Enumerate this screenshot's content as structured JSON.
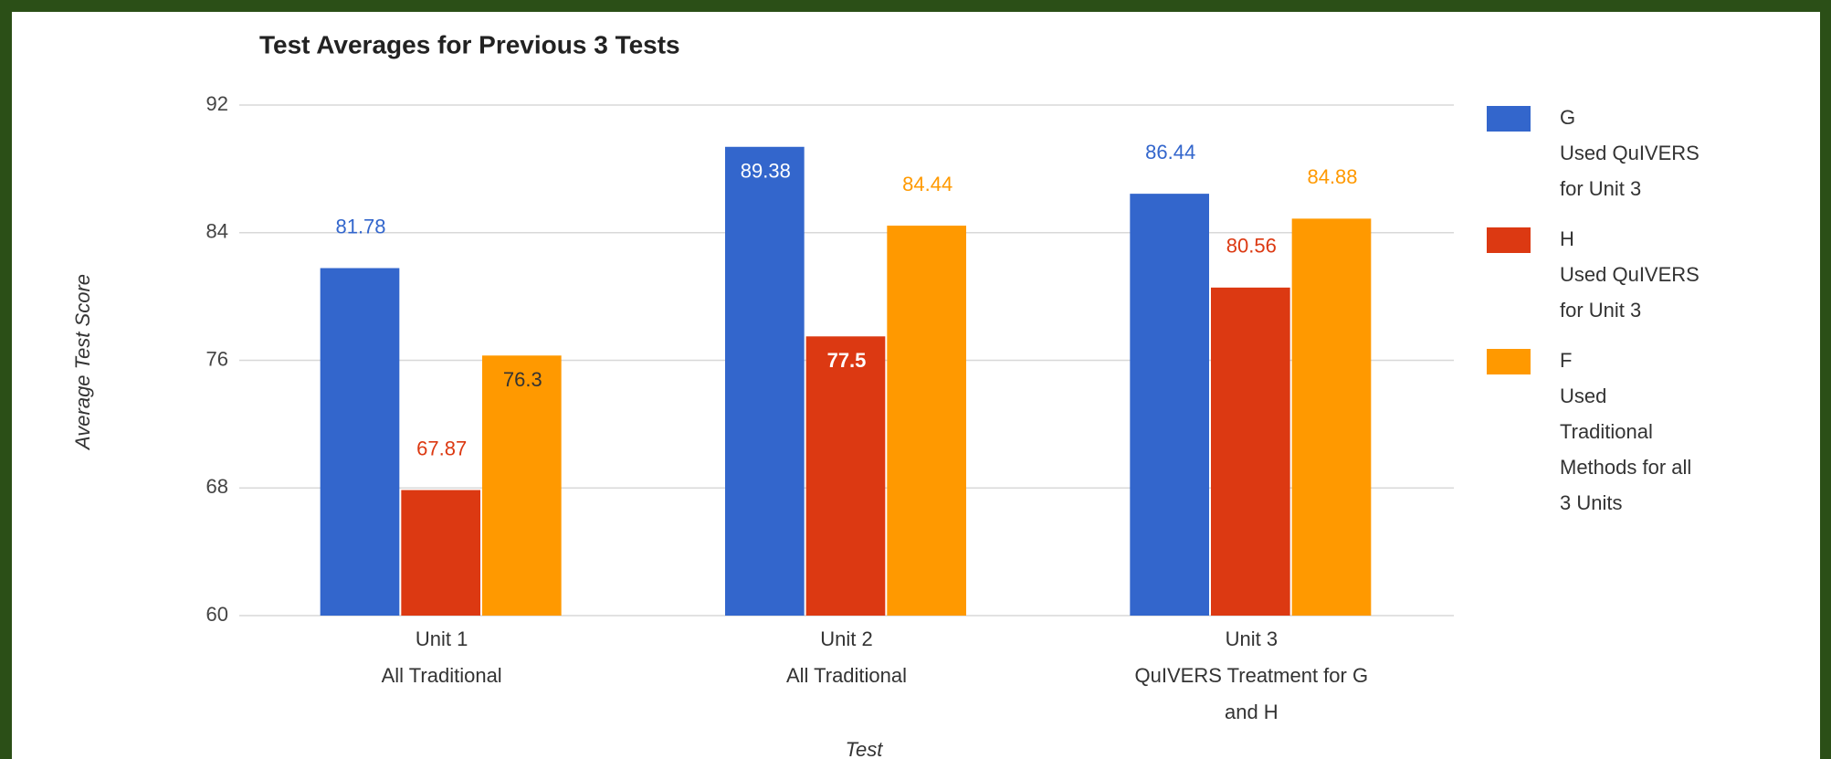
{
  "chart_data": {
    "type": "bar",
    "title": "Test Averages for Previous 3 Tests",
    "y_label": "Average Test Score",
    "x_label": "Test",
    "categories": [
      [
        "Unit 1",
        "All Traditional"
      ],
      [
        "Unit 2",
        "All Traditional"
      ],
      [
        "Unit 3",
        "QuIVERS Treatment for G",
        "and H"
      ]
    ],
    "series": [
      {
        "name": "G",
        "legend_text": [
          "Used QuIVERS",
          "for Unit 3"
        ],
        "color": "#3366cc",
        "values": [
          81.78,
          89.38,
          86.44
        ]
      },
      {
        "name": "H",
        "legend_text": [
          "Used QuIVERS",
          "for Unit 3"
        ],
        "color": "#dc3912",
        "values": [
          67.87,
          77.5,
          80.56
        ]
      },
      {
        "name": "F",
        "legend_text": [
          "Used",
          "Traditional",
          "Methods for all",
          "3 Units"
        ],
        "color": "#ff9900",
        "values": [
          76.3,
          84.44,
          84.88
        ]
      }
    ],
    "ylim": [
      60,
      92
    ],
    "yticks": [
      60,
      68,
      76,
      84,
      92
    ],
    "grid": true,
    "legend": "right"
  }
}
